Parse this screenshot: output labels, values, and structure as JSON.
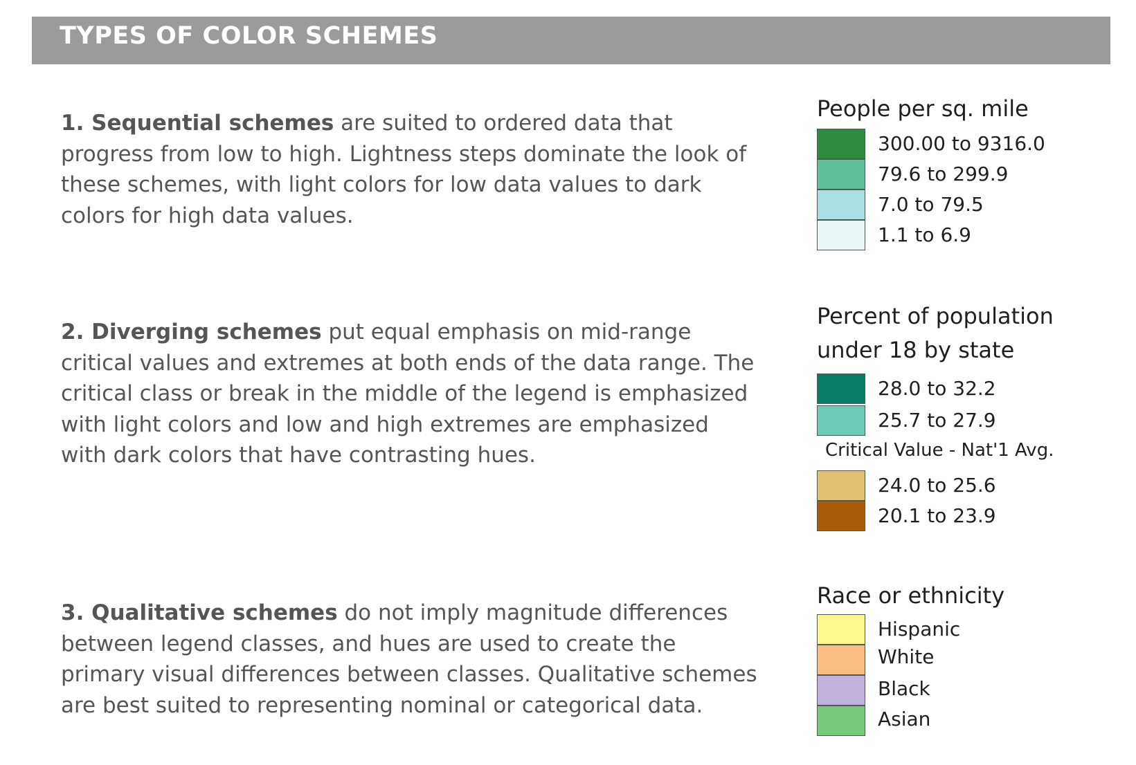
{
  "header": {
    "title": "TYPES OF COLOR SCHEMES",
    "background": "#9b9b9b"
  },
  "schemes": [
    {
      "lead": "1. Sequential schemes",
      "body": " are suited to ordered data that progress from low to high. Lightness steps dominate the look of these schemes, with light colors for low data values to dark colors for high data values."
    },
    {
      "lead": "2. Diverging schemes",
      "body": " put equal emphasis on mid-range critical values and extremes at both ends of the data range. The critical class or break in the middle of the legend is emphasized with light colors and low and high extremes are emphasized with dark colors that have contrasting hues."
    },
    {
      "lead": "3. Qualitative schemes",
      "body": " do not imply magnitude differences between legend classes, and hues are used to create the primary visual differences between classes. Qualitative schemes are best suited to representing nominal or categorical data."
    }
  ],
  "legends": {
    "sequential": {
      "title": "People per sq. mile",
      "items": [
        {
          "label": "300.00 to 9316.0",
          "color": "#2e8b3c"
        },
        {
          "label": "79.6 to 299.9",
          "color": "#5fbf9a"
        },
        {
          "label": "7.0 to 79.5",
          "color": "#a9dfe0"
        },
        {
          "label": "1.1 to 6.9",
          "color": "#e9f6f6"
        }
      ]
    },
    "diverging": {
      "title_line1": "Percent of population",
      "title_line2": "under 18 by state",
      "items_high": [
        {
          "label": "28.0 to 32.2",
          "color": "#087e68"
        },
        {
          "label": "25.7 to 27.9",
          "color": "#6ec9b7"
        }
      ],
      "critical_label": "Critical Value - Nat'1 Avg.",
      "items_low": [
        {
          "label": "24.0 to 25.6",
          "color": "#e2c272"
        },
        {
          "label": "20.1 to 23.9",
          "color": "#a85c07"
        }
      ]
    },
    "qualitative": {
      "title": "Race or ethnicity",
      "items": [
        {
          "label": "Hispanic",
          "color": "#fbf98c"
        },
        {
          "label": "White",
          "color": "#fbbe82"
        },
        {
          "label": "Black",
          "color": "#c0b1dd"
        },
        {
          "label": "Asian",
          "color": "#79c97a"
        }
      ]
    }
  }
}
